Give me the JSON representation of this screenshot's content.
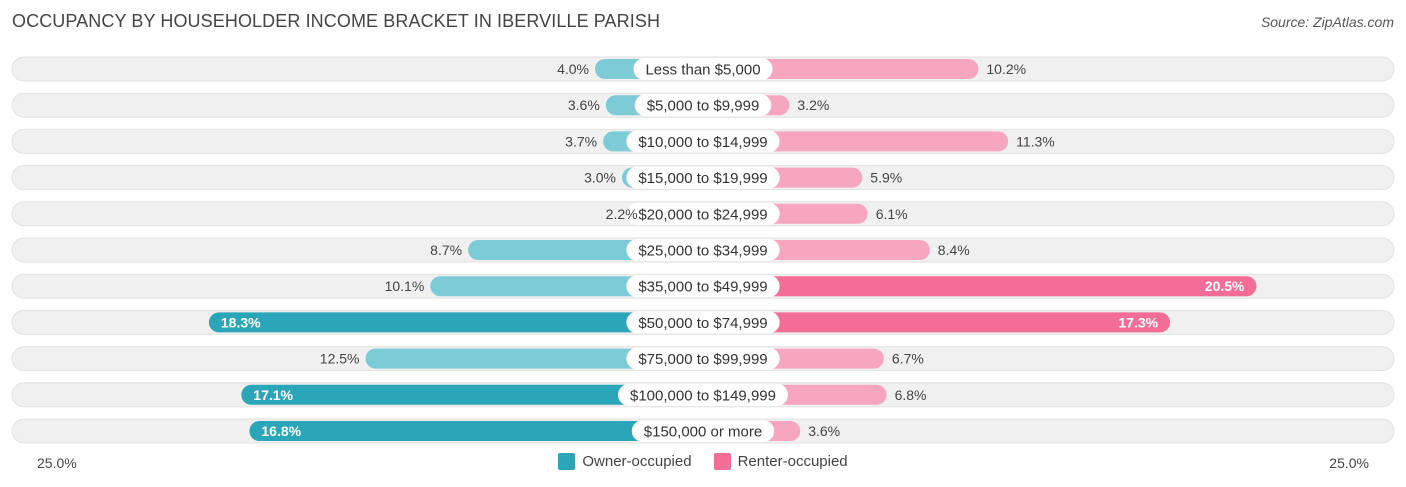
{
  "header": {
    "title": "OCCUPANCY BY HOUSEHOLDER INCOME BRACKET IN IBERVILLE PARISH",
    "source": "Source: ZipAtlas.com"
  },
  "colors": {
    "owner": "#2aa6b8",
    "owner_light": "#7ccbd6",
    "renter": "#f46d96",
    "renter_light": "#f7a6c0",
    "row_bg": "#f0f0f0"
  },
  "chart_data": {
    "type": "bar",
    "orientation": "horizontal-diverging",
    "categories": [
      "Less than $5,000",
      "$5,000 to $9,999",
      "$10,000 to $14,999",
      "$15,000 to $19,999",
      "$20,000 to $24,999",
      "$25,000 to $34,999",
      "$35,000 to $49,999",
      "$50,000 to $74,999",
      "$75,000 to $99,999",
      "$100,000 to $149,999",
      "$150,000 or more"
    ],
    "series": [
      {
        "name": "Owner-occupied",
        "values": [
          4.0,
          3.6,
          3.7,
          3.0,
          2.2,
          8.7,
          10.1,
          18.3,
          12.5,
          17.1,
          16.8
        ],
        "labels": [
          "4.0%",
          "3.6%",
          "3.7%",
          "3.0%",
          "2.2%",
          "8.7%",
          "10.1%",
          "18.3%",
          "12.5%",
          "17.1%",
          "16.8%"
        ]
      },
      {
        "name": "Renter-occupied",
        "values": [
          10.2,
          3.2,
          11.3,
          5.9,
          6.1,
          8.4,
          20.5,
          17.3,
          6.7,
          6.8,
          3.6
        ],
        "labels": [
          "10.2%",
          "3.2%",
          "11.3%",
          "5.9%",
          "6.1%",
          "8.4%",
          "20.5%",
          "17.3%",
          "6.7%",
          "6.8%",
          "3.6%"
        ]
      }
    ],
    "axis": {
      "max": 25.0,
      "left_label": "25.0%",
      "right_label": "25.0%"
    },
    "legend_position": "bottom-center"
  }
}
